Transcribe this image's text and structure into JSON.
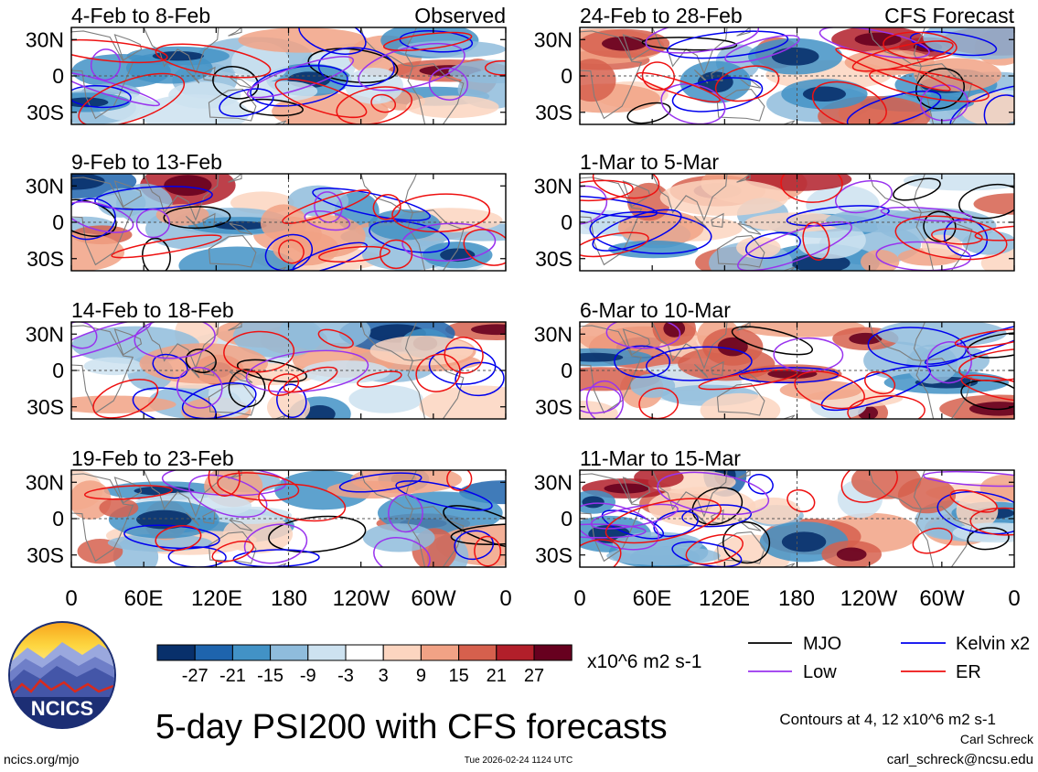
{
  "page": {
    "title": "5-day PSI200 with CFS forecasts",
    "left_header": "Observed",
    "right_header": "CFS Forecast",
    "url": "ncics.org/mjo",
    "timestamp": "Tue 2026-02-24 1124 UTC",
    "author": "Carl Schreck",
    "email": "carl_schreck@ncsu.edu",
    "contours_note": "Contours at 4, 12 x10^6 m2 s-1",
    "logo_text": "NCICS"
  },
  "chart_data": {
    "type": "heatmap",
    "variable": "5-day mean 200-hPa streamfunction (PSI200) anomaly",
    "units": "x10^6 m2 s-1",
    "x_tick_labels": [
      "0",
      "60E",
      "120E",
      "180",
      "120W",
      "60W",
      "0"
    ],
    "y_tick_labels": [
      "30N",
      "0",
      "30S"
    ],
    "xlim": [
      0,
      360
    ],
    "ylim": [
      -40,
      40
    ],
    "colorbar": {
      "units_label": "x10^6 m2 s-1",
      "tick_labels": [
        "-27",
        "-21",
        "-15",
        "-9",
        "-3",
        "3",
        "9",
        "15",
        "21",
        "27"
      ],
      "colors": [
        "#08306b",
        "#1e64ad",
        "#4292c6",
        "#8fbcdc",
        "#cde2f0",
        "#ffffff",
        "#fcd5c0",
        "#f1a285",
        "#d6604d",
        "#b21f2a",
        "#67001f"
      ]
    },
    "contour_levels": [
      4,
      12
    ],
    "contour_legend": [
      {
        "name": "MJO",
        "color": "#000000"
      },
      {
        "name": "Kelvin x2",
        "color": "#0000ee"
      },
      {
        "name": "Low",
        "color": "#9933ee"
      },
      {
        "name": "ER",
        "color": "#ee1111"
      }
    ],
    "panels": [
      {
        "label": "4-Feb to 8-Feb",
        "source": "Observed",
        "seed": 3
      },
      {
        "label": "9-Feb to 13-Feb",
        "source": "Observed",
        "seed": 7
      },
      {
        "label": "14-Feb to 18-Feb",
        "source": "Observed",
        "seed": 11
      },
      {
        "label": "19-Feb to 23-Feb",
        "source": "Observed",
        "seed": 17
      },
      {
        "label": "24-Feb to 28-Feb",
        "source": "CFS Forecast",
        "seed": 23
      },
      {
        "label": "1-Mar to 5-Mar",
        "source": "CFS Forecast",
        "seed": 29
      },
      {
        "label": "6-Mar to 10-Mar",
        "source": "CFS Forecast",
        "seed": 31
      },
      {
        "label": "11-Mar to 15-Mar",
        "source": "CFS Forecast",
        "seed": 37
      }
    ]
  }
}
